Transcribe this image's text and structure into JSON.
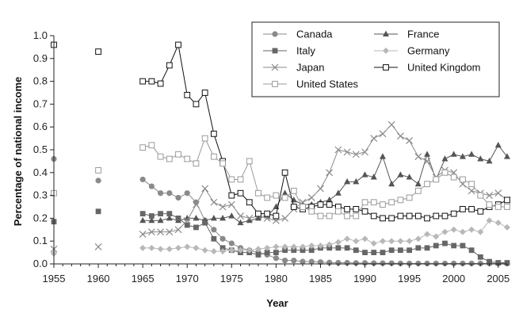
{
  "chart_data": {
    "type": "line",
    "title": "",
    "xlabel": "Year",
    "ylabel": "Percentage of national income",
    "xlim": [
      1955,
      2006
    ],
    "ylim": [
      0,
      1.0
    ],
    "x_ticks": [
      1955,
      1960,
      1965,
      1970,
      1975,
      1980,
      1985,
      1990,
      1995,
      2000,
      2005
    ],
    "y_ticks": [
      0.0,
      0.1,
      0.2,
      0.3,
      0.4,
      0.5,
      0.6,
      0.7,
      0.8,
      0.9,
      1.0
    ],
    "y_tick_labels": [
      "0.0",
      "0.1",
      "0.2",
      "0.3",
      "0.4",
      "0.5",
      "0.6",
      "0.7",
      "0.8",
      "0.9",
      "1.0"
    ],
    "legend_position": "top-right",
    "series": [
      {
        "name": "Canada",
        "marker": "circle",
        "color": "#8a8a8a",
        "points": [
          [
            1955,
            0.46
          ],
          [
            1960,
            0.365
          ],
          [
            1965,
            0.37
          ],
          [
            1966,
            0.34
          ],
          [
            1967,
            0.31
          ],
          [
            1968,
            0.31
          ],
          [
            1969,
            0.29
          ],
          [
            1970,
            0.31
          ],
          [
            1971,
            0.27
          ],
          [
            1972,
            0.19
          ],
          [
            1973,
            0.15
          ],
          [
            1974,
            0.11
          ],
          [
            1975,
            0.09
          ],
          [
            1976,
            0.07
          ],
          [
            1977,
            0.06
          ],
          [
            1978,
            0.05
          ],
          [
            1979,
            0.04
          ],
          [
            1980,
            0.025
          ],
          [
            1981,
            0.015
          ],
          [
            1982,
            0.015
          ],
          [
            1983,
            0.01
          ],
          [
            1984,
            0.01
          ],
          [
            1985,
            0.008
          ],
          [
            1986,
            0.006
          ],
          [
            1987,
            0.005
          ],
          [
            1988,
            0.005
          ],
          [
            1989,
            0.004
          ],
          [
            1990,
            0.004
          ],
          [
            1991,
            0.003
          ],
          [
            1992,
            0.003
          ],
          [
            1993,
            0.003
          ],
          [
            1994,
            0.002
          ],
          [
            1995,
            0.002
          ],
          [
            1996,
            0.002
          ],
          [
            1997,
            0.002
          ],
          [
            1998,
            0.002
          ],
          [
            1999,
            0.002
          ],
          [
            2000,
            0.002
          ],
          [
            2001,
            0.002
          ],
          [
            2002,
            0.002
          ],
          [
            2003,
            0.002
          ],
          [
            2004,
            0.002
          ],
          [
            2005,
            0.002
          ],
          [
            2006,
            0.002
          ]
        ]
      },
      {
        "name": "France",
        "marker": "triangle",
        "color": "#555555",
        "points": [
          [
            1965,
            0.19
          ],
          [
            1966,
            0.19
          ],
          [
            1967,
            0.19
          ],
          [
            1968,
            0.2
          ],
          [
            1969,
            0.19
          ],
          [
            1970,
            0.2
          ],
          [
            1971,
            0.2
          ],
          [
            1972,
            0.19
          ],
          [
            1973,
            0.2
          ],
          [
            1974,
            0.2
          ],
          [
            1975,
            0.21
          ],
          [
            1976,
            0.18
          ],
          [
            1977,
            0.19
          ],
          [
            1978,
            0.2
          ],
          [
            1979,
            0.21
          ],
          [
            1980,
            0.25
          ],
          [
            1981,
            0.31
          ],
          [
            1982,
            0.28
          ],
          [
            1983,
            0.26
          ],
          [
            1984,
            0.26
          ],
          [
            1985,
            0.27
          ],
          [
            1986,
            0.28
          ],
          [
            1987,
            0.31
          ],
          [
            1988,
            0.36
          ],
          [
            1989,
            0.36
          ],
          [
            1990,
            0.39
          ],
          [
            1991,
            0.38
          ],
          [
            1992,
            0.47
          ],
          [
            1993,
            0.35
          ],
          [
            1994,
            0.39
          ],
          [
            1995,
            0.38
          ],
          [
            1996,
            0.35
          ],
          [
            1997,
            0.48
          ],
          [
            1998,
            0.37
          ],
          [
            1999,
            0.46
          ],
          [
            2000,
            0.48
          ],
          [
            2001,
            0.47
          ],
          [
            2002,
            0.48
          ],
          [
            2003,
            0.46
          ],
          [
            2004,
            0.45
          ],
          [
            2005,
            0.52
          ],
          [
            2006,
            0.47
          ]
        ]
      },
      {
        "name": "Italy",
        "marker": "square",
        "color": "#666666",
        "points": [
          [
            1955,
            0.185
          ],
          [
            1960,
            0.23
          ],
          [
            1965,
            0.22
          ],
          [
            1966,
            0.21
          ],
          [
            1967,
            0.22
          ],
          [
            1968,
            0.22
          ],
          [
            1969,
            0.2
          ],
          [
            1970,
            0.17
          ],
          [
            1971,
            0.16
          ],
          [
            1972,
            0.18
          ],
          [
            1973,
            0.11
          ],
          [
            1974,
            0.07
          ],
          [
            1975,
            0.06
          ],
          [
            1976,
            0.05
          ],
          [
            1977,
            0.05
          ],
          [
            1978,
            0.04
          ],
          [
            1979,
            0.05
          ],
          [
            1980,
            0.05
          ],
          [
            1981,
            0.06
          ],
          [
            1982,
            0.06
          ],
          [
            1983,
            0.06
          ],
          [
            1984,
            0.06
          ],
          [
            1985,
            0.07
          ],
          [
            1986,
            0.07
          ],
          [
            1987,
            0.07
          ],
          [
            1988,
            0.07
          ],
          [
            1989,
            0.06
          ],
          [
            1990,
            0.05
          ],
          [
            1991,
            0.05
          ],
          [
            1992,
            0.05
          ],
          [
            1993,
            0.06
          ],
          [
            1994,
            0.06
          ],
          [
            1995,
            0.06
          ],
          [
            1996,
            0.07
          ],
          [
            1997,
            0.07
          ],
          [
            1998,
            0.08
          ],
          [
            1999,
            0.09
          ],
          [
            2000,
            0.08
          ],
          [
            2001,
            0.08
          ],
          [
            2002,
            0.06
          ],
          [
            2003,
            0.03
          ],
          [
            2004,
            0.01
          ],
          [
            2005,
            0.005
          ],
          [
            2006,
            0.005
          ]
        ]
      },
      {
        "name": "Germany",
        "marker": "diamond",
        "color": "#b8b8b8",
        "points": [
          [
            1955,
            0.045
          ],
          [
            1965,
            0.07
          ],
          [
            1966,
            0.07
          ],
          [
            1967,
            0.065
          ],
          [
            1968,
            0.065
          ],
          [
            1969,
            0.07
          ],
          [
            1970,
            0.075
          ],
          [
            1971,
            0.07
          ],
          [
            1972,
            0.06
          ],
          [
            1973,
            0.055
          ],
          [
            1974,
            0.055
          ],
          [
            1975,
            0.06
          ],
          [
            1976,
            0.06
          ],
          [
            1977,
            0.06
          ],
          [
            1978,
            0.065
          ],
          [
            1979,
            0.07
          ],
          [
            1980,
            0.075
          ],
          [
            1981,
            0.075
          ],
          [
            1982,
            0.075
          ],
          [
            1983,
            0.075
          ],
          [
            1984,
            0.08
          ],
          [
            1985,
            0.08
          ],
          [
            1986,
            0.085
          ],
          [
            1987,
            0.095
          ],
          [
            1988,
            0.11
          ],
          [
            1989,
            0.1
          ],
          [
            1990,
            0.11
          ],
          [
            1991,
            0.09
          ],
          [
            1992,
            0.1
          ],
          [
            1993,
            0.1
          ],
          [
            1994,
            0.1
          ],
          [
            1995,
            0.1
          ],
          [
            1996,
            0.11
          ],
          [
            1997,
            0.13
          ],
          [
            1998,
            0.12
          ],
          [
            1999,
            0.14
          ],
          [
            2000,
            0.15
          ],
          [
            2001,
            0.14
          ],
          [
            2002,
            0.15
          ],
          [
            2003,
            0.14
          ],
          [
            2004,
            0.19
          ],
          [
            2005,
            0.18
          ],
          [
            2006,
            0.16
          ]
        ]
      },
      {
        "name": "Japan",
        "marker": "x",
        "color": "#8a8a8a",
        "points": [
          [
            1955,
            0.065
          ],
          [
            1960,
            0.075
          ],
          [
            1965,
            0.13
          ],
          [
            1966,
            0.14
          ],
          [
            1967,
            0.14
          ],
          [
            1968,
            0.14
          ],
          [
            1969,
            0.15
          ],
          [
            1970,
            0.19
          ],
          [
            1971,
            0.26
          ],
          [
            1972,
            0.33
          ],
          [
            1973,
            0.27
          ],
          [
            1974,
            0.25
          ],
          [
            1975,
            0.26
          ],
          [
            1976,
            0.21
          ],
          [
            1977,
            0.2
          ],
          [
            1978,
            0.21
          ],
          [
            1979,
            0.2
          ],
          [
            1980,
            0.19
          ],
          [
            1981,
            0.2
          ],
          [
            1982,
            0.24
          ],
          [
            1983,
            0.27
          ],
          [
            1984,
            0.29
          ],
          [
            1985,
            0.33
          ],
          [
            1986,
            0.4
          ],
          [
            1987,
            0.5
          ],
          [
            1988,
            0.49
          ],
          [
            1989,
            0.48
          ],
          [
            1990,
            0.49
          ],
          [
            1991,
            0.55
          ],
          [
            1992,
            0.57
          ],
          [
            1993,
            0.61
          ],
          [
            1994,
            0.56
          ],
          [
            1995,
            0.54
          ],
          [
            1996,
            0.47
          ],
          [
            1997,
            0.45
          ],
          [
            1998,
            0.38
          ],
          [
            1999,
            0.41
          ],
          [
            2000,
            0.4
          ],
          [
            2001,
            0.35
          ],
          [
            2002,
            0.32
          ],
          [
            2003,
            0.31
          ],
          [
            2004,
            0.3
          ],
          [
            2005,
            0.31
          ],
          [
            2006,
            0.28
          ]
        ]
      },
      {
        "name": "United Kingdom",
        "marker": "square-open-black",
        "color": "#111111",
        "points": [
          [
            1955,
            0.96
          ],
          [
            1960,
            0.93
          ],
          [
            1965,
            0.8
          ],
          [
            1966,
            0.8
          ],
          [
            1967,
            0.79
          ],
          [
            1968,
            0.87
          ],
          [
            1969,
            0.96
          ],
          [
            1970,
            0.74
          ],
          [
            1971,
            0.7
          ],
          [
            1972,
            0.75
          ],
          [
            1973,
            0.57
          ],
          [
            1974,
            0.45
          ],
          [
            1975,
            0.3
          ],
          [
            1976,
            0.31
          ],
          [
            1977,
            0.27
          ],
          [
            1978,
            0.22
          ],
          [
            1979,
            0.22
          ],
          [
            1980,
            0.21
          ],
          [
            1981,
            0.4
          ],
          [
            1982,
            0.25
          ],
          [
            1983,
            0.24
          ],
          [
            1984,
            0.25
          ],
          [
            1985,
            0.26
          ],
          [
            1986,
            0.26
          ],
          [
            1987,
            0.25
          ],
          [
            1988,
            0.24
          ],
          [
            1989,
            0.24
          ],
          [
            1990,
            0.23
          ],
          [
            1991,
            0.21
          ],
          [
            1992,
            0.2
          ],
          [
            1993,
            0.2
          ],
          [
            1994,
            0.21
          ],
          [
            1995,
            0.21
          ],
          [
            1996,
            0.21
          ],
          [
            1997,
            0.2
          ],
          [
            1998,
            0.21
          ],
          [
            1999,
            0.21
          ],
          [
            2000,
            0.22
          ],
          [
            2001,
            0.24
          ],
          [
            2002,
            0.24
          ],
          [
            2003,
            0.23
          ],
          [
            2004,
            0.25
          ],
          [
            2005,
            0.26
          ],
          [
            2006,
            0.28
          ]
        ]
      },
      {
        "name": "United States",
        "marker": "square-open-gray",
        "color": "#9a9a9a",
        "points": [
          [
            1955,
            0.31
          ],
          [
            1960,
            0.41
          ],
          [
            1965,
            0.51
          ],
          [
            1966,
            0.52
          ],
          [
            1967,
            0.47
          ],
          [
            1968,
            0.46
          ],
          [
            1969,
            0.48
          ],
          [
            1970,
            0.46
          ],
          [
            1971,
            0.44
          ],
          [
            1972,
            0.55
          ],
          [
            1973,
            0.47
          ],
          [
            1974,
            0.44
          ],
          [
            1975,
            0.37
          ],
          [
            1976,
            0.37
          ],
          [
            1977,
            0.45
          ],
          [
            1978,
            0.31
          ],
          [
            1979,
            0.29
          ],
          [
            1980,
            0.3
          ],
          [
            1981,
            0.29
          ],
          [
            1982,
            0.32
          ],
          [
            1983,
            0.25
          ],
          [
            1984,
            0.23
          ],
          [
            1985,
            0.21
          ],
          [
            1986,
            0.21
          ],
          [
            1987,
            0.23
          ],
          [
            1988,
            0.21
          ],
          [
            1989,
            0.21
          ],
          [
            1990,
            0.27
          ],
          [
            1991,
            0.27
          ],
          [
            1992,
            0.26
          ],
          [
            1993,
            0.27
          ],
          [
            1994,
            0.28
          ],
          [
            1995,
            0.29
          ],
          [
            1996,
            0.32
          ],
          [
            1997,
            0.35
          ],
          [
            1998,
            0.37
          ],
          [
            1999,
            0.4
          ],
          [
            2000,
            0.38
          ],
          [
            2001,
            0.37
          ],
          [
            2002,
            0.35
          ],
          [
            2003,
            0.3
          ],
          [
            2004,
            0.26
          ],
          [
            2005,
            0.25
          ],
          [
            2006,
            0.25
          ]
        ]
      }
    ]
  }
}
